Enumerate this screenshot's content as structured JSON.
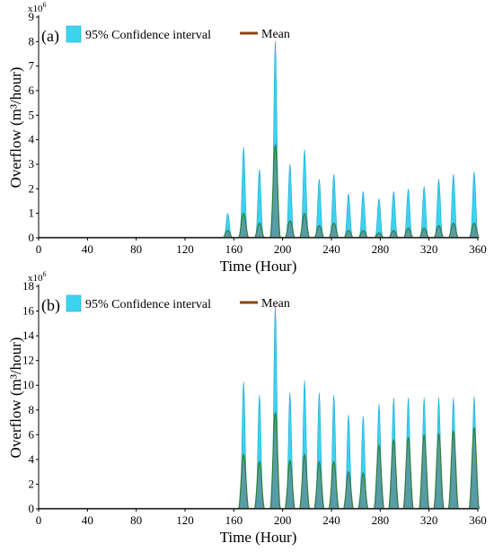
{
  "chart_data": [
    {
      "type": "area",
      "panel_label": "(a)",
      "xlabel": "Time (Hour)",
      "ylabel": "Overflow (m³/hour)",
      "y_multiplier": "x10^6",
      "xlim": [
        0,
        360
      ],
      "ylim": [
        0,
        9
      ],
      "xticks": [
        0,
        40,
        80,
        120,
        160,
        200,
        240,
        280,
        320,
        360
      ],
      "yticks": [
        0,
        1,
        2,
        3,
        4,
        5,
        6,
        7,
        8,
        9
      ],
      "legend": {
        "ci_label": "95% Confidence  interval",
        "mean_label": "Mean",
        "position": "top-left"
      },
      "colors": {
        "ci": "#3dd3ee",
        "ci_edge": "#1aa8d8",
        "mean": "#8b4513",
        "mean_fill": "#6f6f6f"
      },
      "peaks_x": [
        155,
        168,
        181,
        194,
        206,
        218,
        230,
        242,
        254,
        266,
        279,
        291,
        303,
        316,
        328,
        340,
        357
      ],
      "mean_peak": [
        0.3,
        1.0,
        0.6,
        3.8,
        0.7,
        1.0,
        0.5,
        0.6,
        0.3,
        0.3,
        0.2,
        0.3,
        0.4,
        0.4,
        0.5,
        0.6,
        0.6
      ],
      "ci_upper_peak": [
        1.0,
        3.7,
        2.8,
        8.0,
        3.0,
        3.6,
        2.4,
        2.6,
        1.8,
        1.9,
        1.6,
        1.9,
        2.0,
        2.1,
        2.4,
        2.6,
        2.7
      ]
    },
    {
      "type": "area",
      "panel_label": "(b)",
      "xlabel": "Time (Hour)",
      "ylabel": "Overflow (m³/hour)",
      "y_multiplier": "x10^6",
      "xlim": [
        0,
        360
      ],
      "ylim": [
        0,
        18
      ],
      "xticks": [
        0,
        40,
        80,
        120,
        160,
        200,
        240,
        280,
        320,
        360
      ],
      "yticks": [
        0,
        2,
        4,
        6,
        8,
        10,
        12,
        14,
        16,
        18
      ],
      "legend": {
        "ci_label": "95% Confidence  interval",
        "mean_label": "Mean",
        "position": "top-left"
      },
      "colors": {
        "ci": "#3dd3ee",
        "ci_edge": "#1aa8d8",
        "mean": "#8b4513",
        "mean_fill": "#6f6f6f"
      },
      "peaks_x": [
        168,
        181,
        194,
        206,
        218,
        230,
        242,
        254,
        266,
        279,
        291,
        303,
        316,
        328,
        340,
        357
      ],
      "mean_peak": [
        4.4,
        3.8,
        7.8,
        3.9,
        4.4,
        3.8,
        3.8,
        3.0,
        2.9,
        5.1,
        5.6,
        5.8,
        6.0,
        6.1,
        6.3,
        6.6
      ],
      "ci_upper_peak": [
        10.3,
        9.2,
        16.4,
        9.4,
        10.4,
        9.4,
        9.2,
        7.6,
        7.5,
        8.5,
        9.0,
        9.0,
        9.0,
        9.0,
        9.0,
        9.1
      ]
    }
  ]
}
